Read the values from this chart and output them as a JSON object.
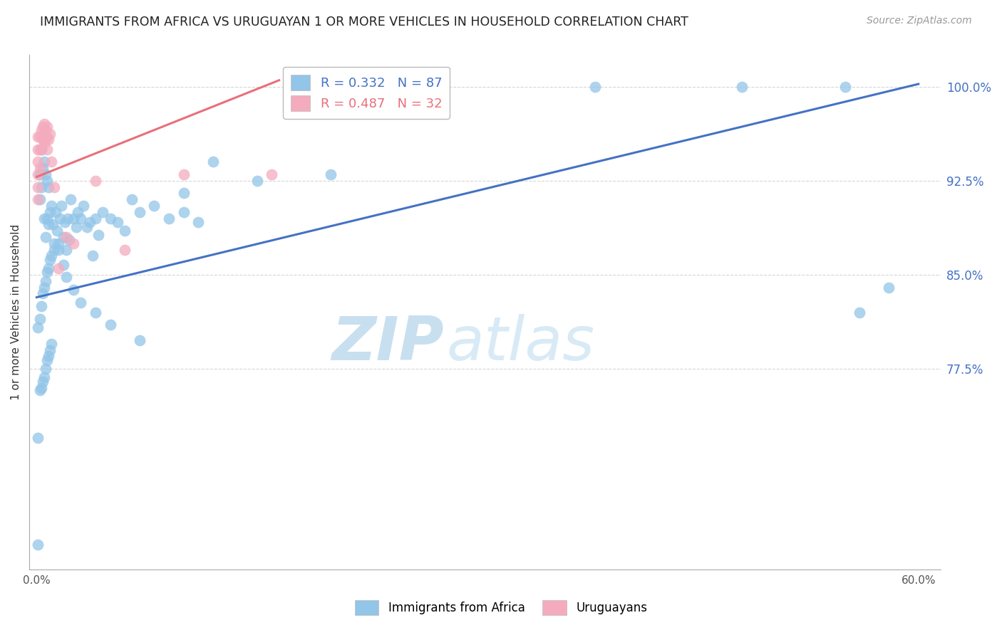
{
  "title": "IMMIGRANTS FROM AFRICA VS URUGUAYAN 1 OR MORE VEHICLES IN HOUSEHOLD CORRELATION CHART",
  "source": "Source: ZipAtlas.com",
  "ylabel": "1 or more Vehicles in Household",
  "ytick_values": [
    0.775,
    0.85,
    0.925,
    1.0
  ],
  "ytick_labels": [
    "77.5%",
    "85.0%",
    "92.5%",
    "100.0%"
  ],
  "ylim": [
    0.615,
    1.025
  ],
  "xlim": [
    -0.005,
    0.615
  ],
  "legend1_r": "0.332",
  "legend1_n": "87",
  "legend2_r": "0.487",
  "legend2_n": "32",
  "blue_color": "#92C5E8",
  "pink_color": "#F4ABBE",
  "blue_line_color": "#4472C4",
  "pink_line_color": "#E8707A",
  "grid_color": "#CCCCCC",
  "blue_x": [
    0.001,
    0.001,
    0.002,
    0.002,
    0.002,
    0.003,
    0.003,
    0.003,
    0.004,
    0.004,
    0.005,
    0.005,
    0.005,
    0.006,
    0.006,
    0.006,
    0.007,
    0.007,
    0.007,
    0.008,
    0.008,
    0.008,
    0.009,
    0.009,
    0.01,
    0.01,
    0.011,
    0.012,
    0.013,
    0.014,
    0.015,
    0.016,
    0.017,
    0.018,
    0.019,
    0.02,
    0.021,
    0.022,
    0.023,
    0.025,
    0.027,
    0.028,
    0.03,
    0.032,
    0.034,
    0.036,
    0.038,
    0.04,
    0.042,
    0.045,
    0.05,
    0.055,
    0.06,
    0.065,
    0.07,
    0.08,
    0.09,
    0.1,
    0.11,
    0.12,
    0.001,
    0.002,
    0.003,
    0.004,
    0.005,
    0.006,
    0.007,
    0.008,
    0.009,
    0.01,
    0.012,
    0.015,
    0.018,
    0.02,
    0.025,
    0.03,
    0.04,
    0.05,
    0.07,
    0.1,
    0.15,
    0.2,
    0.38,
    0.48,
    0.55,
    0.56,
    0.58
  ],
  "blue_y": [
    0.635,
    0.72,
    0.758,
    0.91,
    0.93,
    0.76,
    0.92,
    0.95,
    0.765,
    0.935,
    0.768,
    0.895,
    0.94,
    0.775,
    0.88,
    0.93,
    0.782,
    0.895,
    0.925,
    0.785,
    0.89,
    0.92,
    0.79,
    0.9,
    0.795,
    0.905,
    0.89,
    0.87,
    0.9,
    0.885,
    0.875,
    0.895,
    0.905,
    0.88,
    0.892,
    0.87,
    0.895,
    0.878,
    0.91,
    0.895,
    0.888,
    0.9,
    0.895,
    0.905,
    0.888,
    0.892,
    0.865,
    0.895,
    0.882,
    0.9,
    0.895,
    0.892,
    0.885,
    0.91,
    0.9,
    0.905,
    0.895,
    0.9,
    0.892,
    0.94,
    0.808,
    0.815,
    0.825,
    0.835,
    0.84,
    0.845,
    0.852,
    0.855,
    0.862,
    0.865,
    0.875,
    0.87,
    0.858,
    0.848,
    0.838,
    0.828,
    0.82,
    0.81,
    0.798,
    0.915,
    0.925,
    0.93,
    1.0,
    1.0,
    1.0,
    0.82,
    0.84
  ],
  "pink_x": [
    0.001,
    0.001,
    0.001,
    0.001,
    0.001,
    0.001,
    0.002,
    0.002,
    0.002,
    0.003,
    0.003,
    0.004,
    0.004,
    0.005,
    0.005,
    0.005,
    0.006,
    0.006,
    0.007,
    0.007,
    0.007,
    0.008,
    0.009,
    0.01,
    0.012,
    0.015,
    0.02,
    0.025,
    0.04,
    0.06,
    0.1,
    0.16
  ],
  "pink_y": [
    0.96,
    0.95,
    0.94,
    0.93,
    0.92,
    0.91,
    0.96,
    0.95,
    0.935,
    0.965,
    0.95,
    0.968,
    0.958,
    0.97,
    0.96,
    0.955,
    0.965,
    0.958,
    0.968,
    0.96,
    0.95,
    0.958,
    0.962,
    0.94,
    0.92,
    0.855,
    0.88,
    0.875,
    0.925,
    0.87,
    0.93,
    0.93
  ],
  "blue_line_x": [
    0.0,
    0.6
  ],
  "blue_line_y": [
    0.832,
    1.002
  ],
  "pink_line_x": [
    0.0,
    0.165
  ],
  "pink_line_y": [
    0.928,
    1.005
  ],
  "watermark_zip": "ZIP",
  "watermark_atlas": "atlas",
  "watermark_zip_color": "#C8DFF0",
  "watermark_atlas_color": "#D8EAF5"
}
